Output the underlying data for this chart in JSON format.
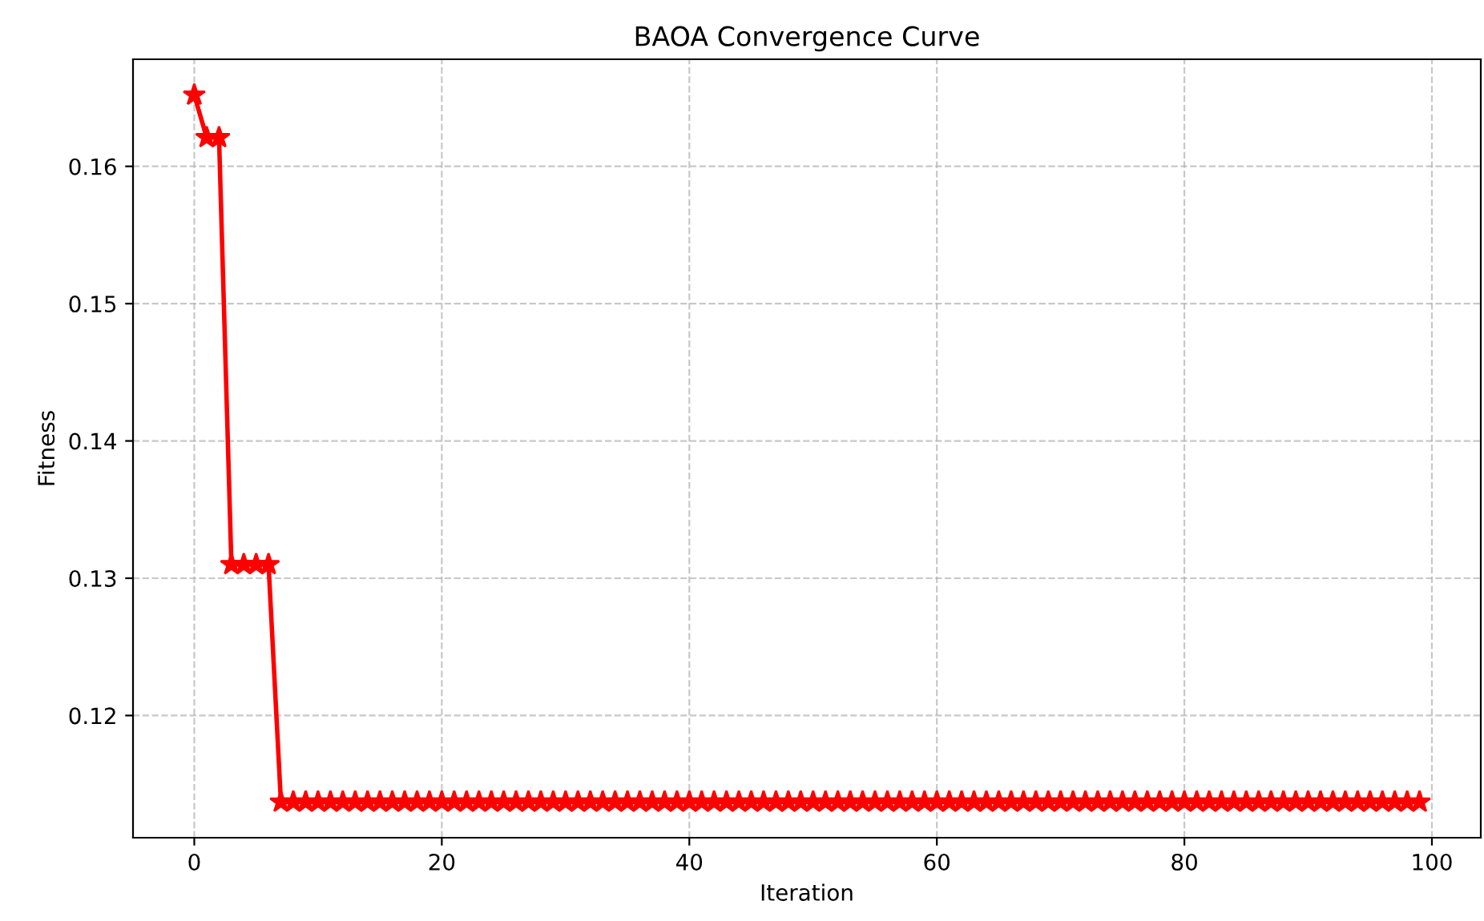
{
  "chart_data": {
    "type": "line",
    "title": "BAOA Convergence Curve",
    "xlabel": "Iteration",
    "ylabel": "Fitness",
    "x": [
      0,
      1,
      2,
      3,
      4,
      5,
      6,
      7,
      8,
      9,
      10,
      11,
      12,
      13,
      14,
      15,
      16,
      17,
      18,
      19,
      20,
      21,
      22,
      23,
      24,
      25,
      26,
      27,
      28,
      29,
      30,
      31,
      32,
      33,
      34,
      35,
      36,
      37,
      38,
      39,
      40,
      41,
      42,
      43,
      44,
      45,
      46,
      47,
      48,
      49,
      50,
      51,
      52,
      53,
      54,
      55,
      56,
      57,
      58,
      59,
      60,
      61,
      62,
      63,
      64,
      65,
      66,
      67,
      68,
      69,
      70,
      71,
      72,
      73,
      74,
      75,
      76,
      77,
      78,
      79,
      80,
      81,
      82,
      83,
      84,
      85,
      86,
      87,
      88,
      89,
      90,
      91,
      92,
      93,
      94,
      95,
      96,
      97,
      98,
      99
    ],
    "series": [
      {
        "color": "#ff0000",
        "values": [
          0.1652,
          0.1621,
          0.1621,
          0.131,
          0.131,
          0.131,
          0.131,
          0.1137,
          0.1137,
          0.1137,
          0.1137,
          0.1137,
          0.1137,
          0.1137,
          0.1137,
          0.1137,
          0.1137,
          0.1137,
          0.1137,
          0.1137,
          0.1137,
          0.1137,
          0.1137,
          0.1137,
          0.1137,
          0.1137,
          0.1137,
          0.1137,
          0.1137,
          0.1137,
          0.1137,
          0.1137,
          0.1137,
          0.1137,
          0.1137,
          0.1137,
          0.1137,
          0.1137,
          0.1137,
          0.1137,
          0.1137,
          0.1137,
          0.1137,
          0.1137,
          0.1137,
          0.1137,
          0.1137,
          0.1137,
          0.1137,
          0.1137,
          0.1137,
          0.1137,
          0.1137,
          0.1137,
          0.1137,
          0.1137,
          0.1137,
          0.1137,
          0.1137,
          0.1137,
          0.1137,
          0.1137,
          0.1137,
          0.1137,
          0.1137,
          0.1137,
          0.1137,
          0.1137,
          0.1137,
          0.1137,
          0.1137,
          0.1137,
          0.1137,
          0.1137,
          0.1137,
          0.1137,
          0.1137,
          0.1137,
          0.1137,
          0.1137,
          0.1137,
          0.1137,
          0.1137,
          0.1137,
          0.1137,
          0.1137,
          0.1137,
          0.1137,
          0.1137,
          0.1137,
          0.1137,
          0.1137,
          0.1137,
          0.1137,
          0.1137,
          0.1137,
          0.1137,
          0.1137,
          0.1137,
          0.1137
        ]
      }
    ],
    "xlim": [
      -4.95,
      103.95
    ],
    "xticks": [
      0,
      20,
      40,
      60,
      80,
      100
    ],
    "ylim": [
      0.1111,
      0.1678
    ],
    "yticks": [
      0.12,
      0.13,
      0.14,
      0.15,
      0.16
    ],
    "grid": true,
    "marker": "star",
    "line_style": "solid"
  }
}
